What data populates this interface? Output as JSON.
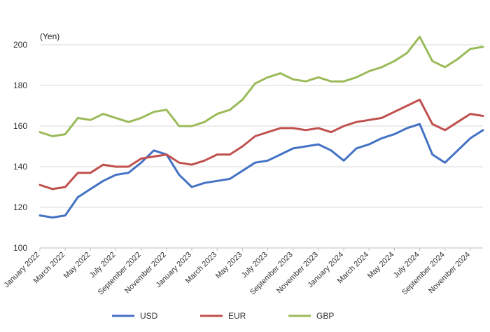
{
  "chart_data": {
    "type": "line",
    "unit_label": "(Yen)",
    "ylim": [
      100,
      210
    ],
    "yticks": [
      100,
      120,
      140,
      160,
      180,
      200
    ],
    "grid": "horizontal",
    "legend_position": "bottom",
    "x_tick_labels": [
      "January 2022",
      "March 2022",
      "May 2022",
      "July 2022",
      "September 2022",
      "November 2022",
      "January 2023",
      "March 2023",
      "May 2023",
      "July 2023",
      "September 2023",
      "November 2023",
      "January 2024",
      "March 2024",
      "May 2024",
      "July 2024",
      "September 2024",
      "November 2024"
    ],
    "x": [
      "2022-01",
      "2022-02",
      "2022-03",
      "2022-04",
      "2022-05",
      "2022-06",
      "2022-07",
      "2022-08",
      "2022-09",
      "2022-10",
      "2022-11",
      "2022-12",
      "2023-01",
      "2023-02",
      "2023-03",
      "2023-04",
      "2023-05",
      "2023-06",
      "2023-07",
      "2023-08",
      "2023-09",
      "2023-10",
      "2023-11",
      "2023-12",
      "2024-01",
      "2024-02",
      "2024-03",
      "2024-04",
      "2024-05",
      "2024-06",
      "2024-07",
      "2024-08",
      "2024-09",
      "2024-10",
      "2024-11",
      "2024-12"
    ],
    "series": [
      {
        "name": "USD",
        "color": "#4472c4",
        "values": [
          116,
          115,
          116,
          125,
          129,
          133,
          136,
          137,
          142,
          148,
          146,
          136,
          130,
          132,
          133,
          134,
          138,
          142,
          143,
          146,
          149,
          150,
          151,
          148,
          143,
          149,
          151,
          154,
          156,
          159,
          161,
          146,
          142,
          148,
          154,
          158
        ]
      },
      {
        "name": "EUR",
        "color": "#c0504d",
        "values": [
          131,
          129,
          130,
          137,
          137,
          141,
          140,
          140,
          144,
          145,
          146,
          142,
          141,
          143,
          146,
          146,
          150,
          155,
          157,
          159,
          159,
          158,
          159,
          157,
          160,
          162,
          163,
          164,
          167,
          170,
          173,
          161,
          158,
          162,
          166,
          165
        ]
      },
      {
        "name": "GBP",
        "color": "#9bbb59",
        "values": [
          157,
          155,
          156,
          164,
          163,
          166,
          164,
          162,
          164,
          167,
          168,
          160,
          160,
          162,
          166,
          168,
          173,
          181,
          184,
          186,
          183,
          182,
          184,
          182,
          182,
          184,
          187,
          189,
          192,
          196,
          204,
          192,
          189,
          193,
          198,
          199
        ]
      }
    ]
  }
}
